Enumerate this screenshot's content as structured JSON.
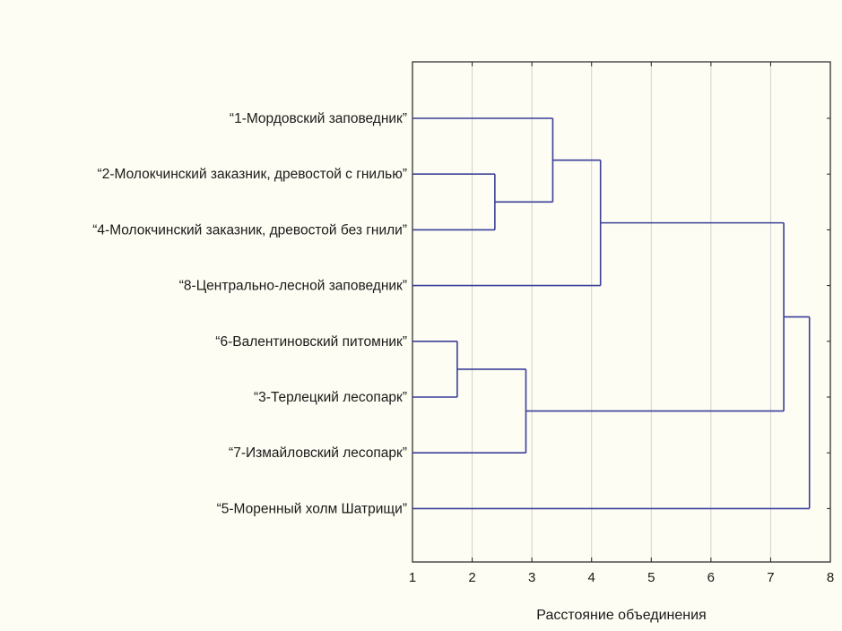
{
  "chart_data": {
    "type": "dendrogram",
    "orientation": "horizontal",
    "title": "",
    "xlabel": "Расстояние объединения",
    "ylabel": "",
    "xlim": [
      1,
      8
    ],
    "x_ticks": [
      "1",
      "2",
      "3",
      "4",
      "5",
      "6",
      "7",
      "8"
    ],
    "grid": "vertical",
    "line_color": "#3b3f98",
    "leaves": [
      {
        "id": "L1",
        "label": "“1-Мордовский заповедник”"
      },
      {
        "id": "L2",
        "label": "“2-Молокчинский заказник, древостой с гнилью”"
      },
      {
        "id": "L4",
        "label": "“4-Молокчинский заказник, древостой без гнили”"
      },
      {
        "id": "L8",
        "label": "“8-Центрально-лесной заповедник”"
      },
      {
        "id": "L6",
        "label": "“6-Валентиновский питомник”"
      },
      {
        "id": "L3",
        "label": "“3-Терлецкий лесопарк”"
      },
      {
        "id": "L7",
        "label": "“7-Измайловский лесопарк”"
      },
      {
        "id": "L5",
        "label": "“5-Моренный холм Шатрищи”"
      }
    ],
    "merges": [
      {
        "id": "M1",
        "children": [
          "L6",
          "L3"
        ],
        "distance": 1.75
      },
      {
        "id": "M2",
        "children": [
          "L2",
          "L4"
        ],
        "distance": 2.38
      },
      {
        "id": "M3",
        "children": [
          "M1",
          "L7"
        ],
        "distance": 2.9
      },
      {
        "id": "M4",
        "children": [
          "L1",
          "M2"
        ],
        "distance": 3.35
      },
      {
        "id": "M5",
        "children": [
          "M4",
          "L8"
        ],
        "distance": 4.15
      },
      {
        "id": "M6",
        "children": [
          "M5",
          "M3"
        ],
        "distance": 7.22
      },
      {
        "id": "M7",
        "children": [
          "M6",
          "L5"
        ],
        "distance": 7.65
      }
    ]
  }
}
